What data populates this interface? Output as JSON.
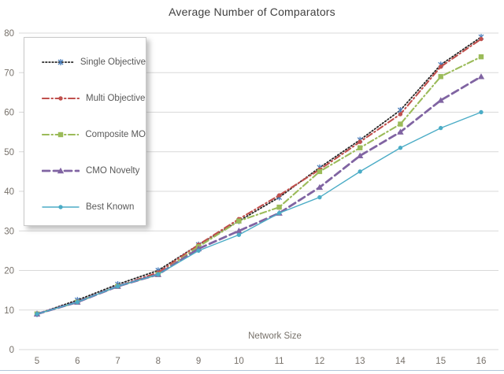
{
  "chart_data": {
    "type": "line",
    "title": "Average Number of Comparators",
    "xlabel": "Network Size",
    "ylabel": "",
    "x": [
      5,
      6,
      7,
      8,
      9,
      10,
      11,
      12,
      13,
      14,
      15,
      16
    ],
    "yticks": [
      0,
      10,
      20,
      30,
      40,
      50,
      60,
      70,
      80
    ],
    "ylim": [
      0,
      80
    ],
    "grid": "horizontal",
    "grid_color": "#d9d9d9",
    "tick_color": "#77716a",
    "title_color": "#3f3f3f",
    "legend_position": "upper-left-inside-box",
    "series": [
      {
        "name": "Single Objective",
        "color": "#262626",
        "marker_color": "#4a7ebb",
        "marker": "asterisk",
        "line_style": "dotted",
        "values": [
          9,
          12.5,
          16.5,
          20,
          26.5,
          32.5,
          38.5,
          46,
          53,
          60.5,
          72,
          79
        ]
      },
      {
        "name": "Multi Objective",
        "color": "#c0504d",
        "marker_color": "#c0504d",
        "marker": "circle",
        "line_style": "dash-dot",
        "values": [
          9,
          12,
          16,
          19.5,
          26.5,
          33,
          39,
          45.5,
          52.5,
          59.5,
          71.5,
          78.5
        ]
      },
      {
        "name": "Composite MO",
        "color": "#9bbb59",
        "marker_color": "#9bbb59",
        "marker": "square",
        "line_style": "dash-dot",
        "values": [
          9,
          12,
          16,
          19,
          26,
          32.5,
          36,
          45,
          51,
          57,
          69,
          74
        ]
      },
      {
        "name": "CMO Novelty",
        "color": "#8064a2",
        "marker_color": "#8064a2",
        "marker": "triangle",
        "line_style": "long-dash",
        "values": [
          9,
          12,
          16,
          19,
          25.5,
          30,
          34.5,
          41,
          49,
          55,
          63,
          69
        ]
      },
      {
        "name": "Best Known",
        "color": "#4bacc6",
        "marker_color": "#4bacc6",
        "marker": "circle",
        "line_style": "solid",
        "values": [
          9,
          12,
          16,
          19,
          25,
          29,
          34.5,
          38.5,
          45,
          51,
          56,
          60
        ]
      }
    ]
  }
}
